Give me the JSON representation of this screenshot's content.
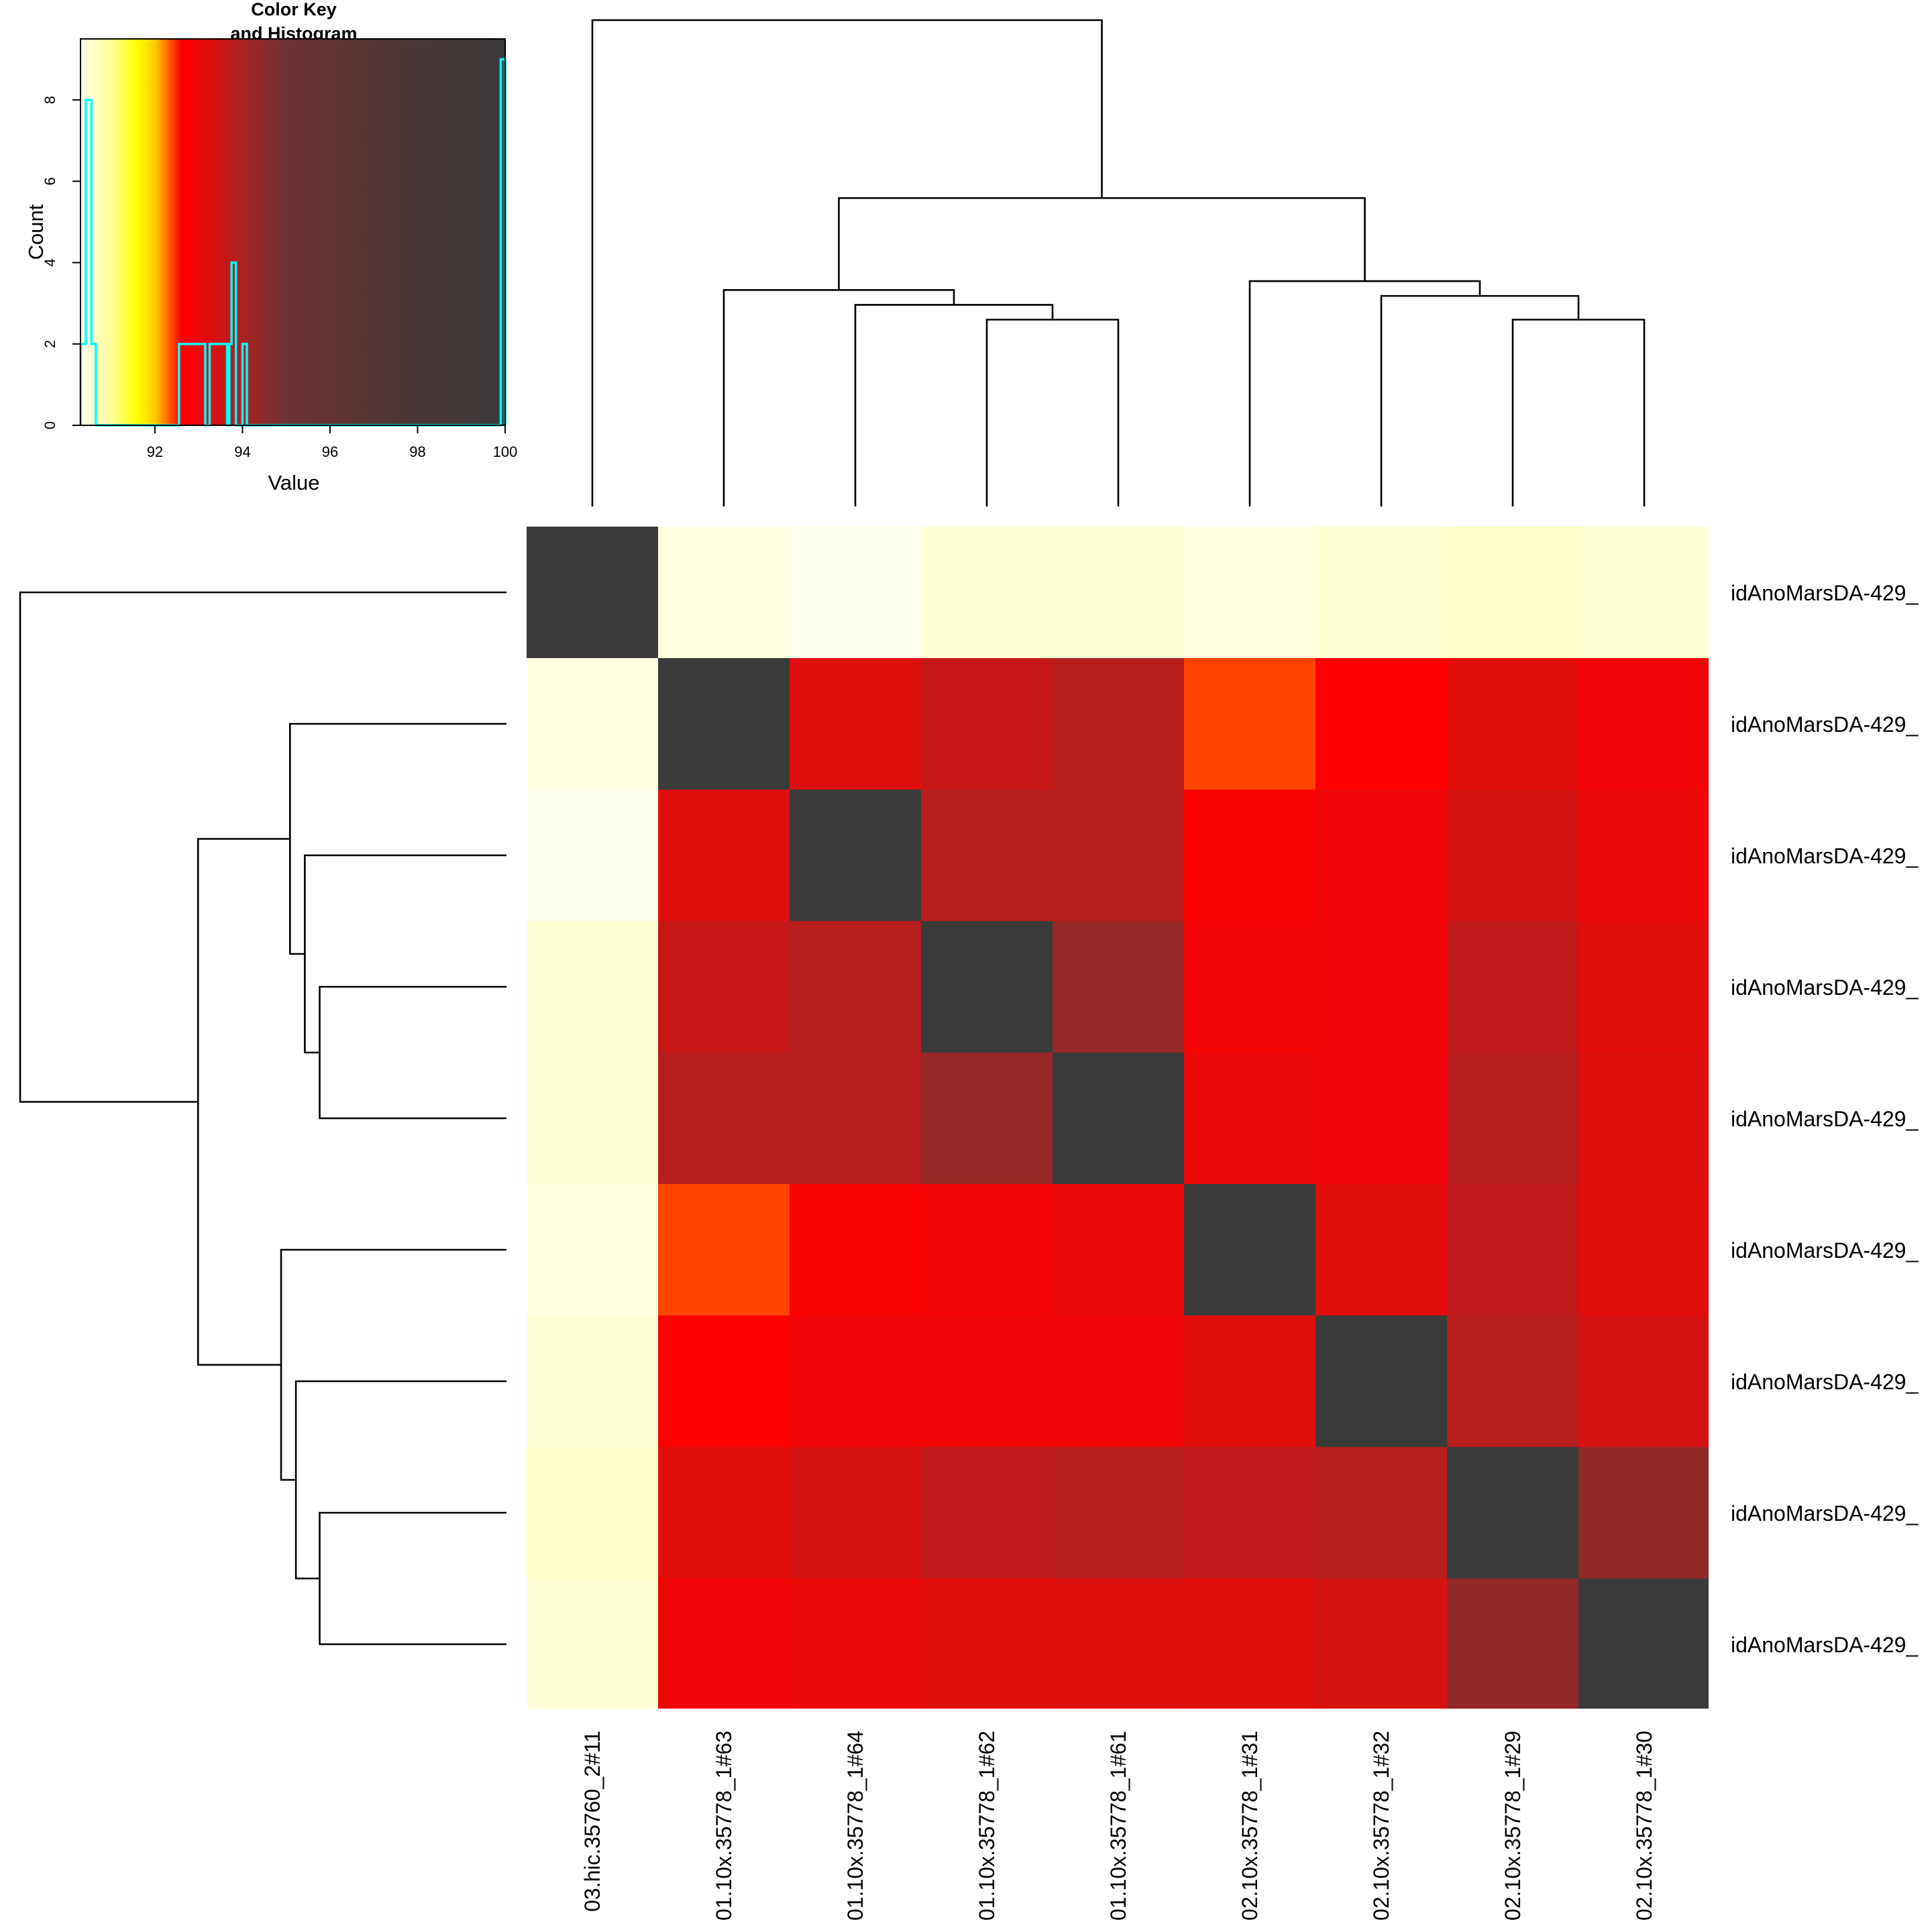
{
  "chart_data": [
    {
      "type": "histogram",
      "title": "Color Key\nand Histogram",
      "title_lines": [
        "Color Key",
        "and Histogram"
      ],
      "xlabel": "Value",
      "ylabel": "Count",
      "xlim": [
        90.3,
        100
      ],
      "ylim": [
        0,
        9.5
      ],
      "x_ticks": [
        92,
        94,
        96,
        98,
        100
      ],
      "y_ticks": [
        0,
        2,
        4,
        6,
        8
      ],
      "color_scale": [
        {
          "value": 90.3,
          "color": "#ffffee"
        },
        {
          "value": 91.0,
          "color": "#ffff99"
        },
        {
          "value": 91.6,
          "color": "#ffff00"
        },
        {
          "value": 92.0,
          "color": "#ffcc00"
        },
        {
          "value": 92.3,
          "color": "#ff6600"
        },
        {
          "value": 92.6,
          "color": "#ff0000"
        },
        {
          "value": 93.3,
          "color": "#dd0f0f"
        },
        {
          "value": 94.0,
          "color": "#a82222"
        },
        {
          "value": 95.0,
          "color": "#6e3232"
        },
        {
          "value": 97.5,
          "color": "#4f3636"
        },
        {
          "value": 100,
          "color": "#3b3b3b"
        }
      ],
      "bins": [
        {
          "x": 90.3,
          "count": 2
        },
        {
          "x": 90.42,
          "count": 8
        },
        {
          "x": 90.55,
          "count": 2
        },
        {
          "x": 90.65,
          "count": 0
        },
        {
          "x": 92.55,
          "count": 2
        },
        {
          "x": 92.65,
          "count": 2
        },
        {
          "x": 92.8,
          "count": 2
        },
        {
          "x": 92.95,
          "count": 2
        },
        {
          "x": 93.05,
          "count": 2
        },
        {
          "x": 93.15,
          "count": 0
        },
        {
          "x": 93.25,
          "count": 2
        },
        {
          "x": 93.35,
          "count": 2
        },
        {
          "x": 93.45,
          "count": 2
        },
        {
          "x": 93.55,
          "count": 2
        },
        {
          "x": 93.65,
          "count": 0
        },
        {
          "x": 93.7,
          "count": 2
        },
        {
          "x": 93.75,
          "count": 4
        },
        {
          "x": 93.85,
          "count": 0
        },
        {
          "x": 94.0,
          "count": 2
        },
        {
          "x": 94.1,
          "count": 0
        },
        {
          "x": 99.9,
          "count": 9
        },
        {
          "x": 100,
          "count": 0
        }
      ]
    },
    {
      "type": "heatmap",
      "row_labels": [
        "idAnoMarsDA-429_",
        "idAnoMarsDA-429_",
        "idAnoMarsDA-429_",
        "idAnoMarsDA-429_",
        "idAnoMarsDA-429_",
        "idAnoMarsDA-429_",
        "idAnoMarsDA-429_",
        "idAnoMarsDA-429_",
        "idAnoMarsDA-429_"
      ],
      "col_labels": [
        "03.hic.35760_2#11",
        "01.10x.35778_1#63",
        "01.10x.35778_1#64",
        "01.10x.35778_1#62",
        "01.10x.35778_1#61",
        "02.10x.35778_1#31",
        "02.10x.35778_1#32",
        "02.10x.35778_1#29",
        "02.10x.35778_1#30"
      ],
      "values": [
        [
          100,
          90.4,
          90.3,
          90.5,
          90.5,
          90.4,
          90.5,
          90.6,
          90.5
        ],
        [
          90.4,
          100,
          93.3,
          93.6,
          93.8,
          92.4,
          92.6,
          93.2,
          92.9
        ],
        [
          90.3,
          93.3,
          100,
          93.8,
          93.8,
          92.7,
          92.9,
          93.4,
          93.0
        ],
        [
          90.5,
          93.6,
          93.8,
          100,
          94.3,
          92.8,
          92.9,
          93.7,
          93.2
        ],
        [
          90.5,
          93.8,
          93.8,
          94.3,
          100,
          93.0,
          92.9,
          93.8,
          93.3
        ],
        [
          90.4,
          92.4,
          92.7,
          92.8,
          93.0,
          100,
          93.2,
          93.7,
          93.2
        ],
        [
          90.5,
          92.6,
          92.9,
          92.9,
          92.9,
          93.2,
          100,
          93.8,
          93.4
        ],
        [
          90.6,
          93.2,
          93.4,
          93.7,
          93.8,
          93.7,
          93.8,
          100,
          94.4
        ],
        [
          90.5,
          92.9,
          93.0,
          93.2,
          93.3,
          93.2,
          93.4,
          94.4,
          100
        ]
      ],
      "dendrogram": {
        "leaf_order": [
          0,
          1,
          2,
          3,
          4,
          5,
          6,
          7,
          8
        ],
        "merges": [
          {
            "left": "leaf3",
            "right": "leaf4",
            "height": 6.3
          },
          {
            "left": "leaf7",
            "right": "leaf8",
            "height": 6.3
          },
          {
            "left": "leaf2",
            "right": "n0",
            "height": 6.8
          },
          {
            "left": "leaf6",
            "right": "n1",
            "height": 7.1
          },
          {
            "left": "leaf1",
            "right": "n2",
            "height": 7.3
          },
          {
            "left": "leaf5",
            "right": "n3",
            "height": 7.6
          },
          {
            "left": "n4",
            "right": "n5",
            "height": 10.4
          },
          {
            "left": "leaf0",
            "right": "n6",
            "height": 16.4
          }
        ]
      }
    }
  ]
}
